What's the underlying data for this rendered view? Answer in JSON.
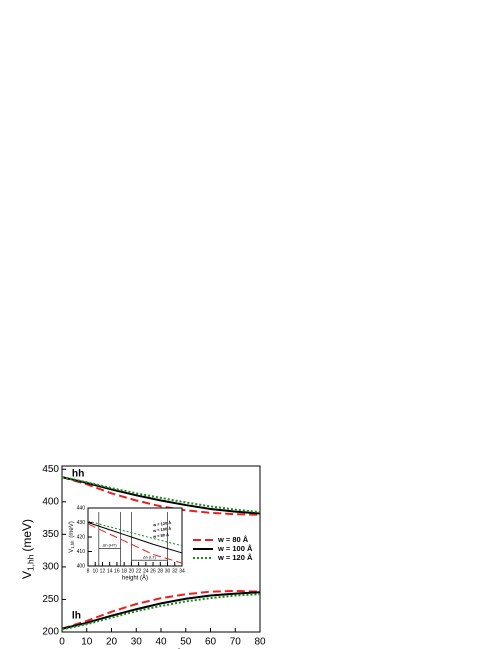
{
  "chart_data": [
    {
      "type": "line",
      "xlabel": "height (Å)",
      "ylabel": "V",
      "ylabel_sub": "1,hh",
      "ylabel_unit": "(meV)",
      "x": [
        0,
        10,
        20,
        30,
        40,
        50,
        60,
        70,
        80
      ],
      "xlim": [
        0,
        80
      ],
      "xticks": [
        0,
        10,
        20,
        30,
        40,
        50,
        60,
        70,
        80
      ],
      "ylim": [
        200,
        455
      ],
      "yticks": [
        200,
        250,
        300,
        350,
        400,
        450
      ],
      "legend": "right",
      "series": [
        {
          "name": "w = 80 Å",
          "color": "#e8211f",
          "dash": "dashed",
          "hh": [
            438,
            427,
            413,
            402,
            393,
            387,
            383,
            381,
            380
          ],
          "lh": [
            205,
            217,
            231,
            243,
            252,
            258,
            262,
            263,
            262
          ]
        },
        {
          "name": "w = 100 Å",
          "color": "#000000",
          "dash": "solid",
          "hh": [
            438,
            429,
            419,
            410,
            402,
            395,
            389,
            385,
            382
          ],
          "lh": [
            205,
            214,
            225,
            235,
            244,
            251,
            256,
            259,
            261
          ]
        },
        {
          "name": "w = 120 Å",
          "color": "#1a8a1a",
          "dash": "dotted",
          "hh": [
            438,
            430,
            421,
            413,
            406,
            399,
            393,
            388,
            384
          ],
          "lh": [
            204,
            212,
            222,
            232,
            240,
            247,
            252,
            256,
            258
          ]
        }
      ],
      "annotations": [
        {
          "text": "hh",
          "x": 4,
          "y": 443
        },
        {
          "text": "lh",
          "x": 4,
          "y": 225
        }
      ]
    },
    {
      "type": "line",
      "xlabel": "height (Å)",
      "ylabel": "V",
      "ylabel_sub": "1,hh",
      "ylabel_unit": "(meV)",
      "x": [
        8,
        14,
        20,
        26,
        34
      ],
      "xlim": [
        8,
        34
      ],
      "xticks": [
        8,
        10,
        12,
        14,
        16,
        18,
        20,
        22,
        24,
        26,
        28,
        30,
        32,
        34
      ],
      "ylim": [
        400,
        440
      ],
      "yticks": [
        400,
        410,
        420,
        430,
        440
      ],
      "series": [
        {
          "name": "w = 80 Å",
          "color": "#e8211f",
          "dash": "dashed",
          "values": [
            429,
            422,
            415,
            408,
            402
          ]
        },
        {
          "name": "w = 100 Å",
          "color": "#000000",
          "dash": "solid",
          "values": [
            430,
            425,
            420,
            415,
            409
          ]
        },
        {
          "name": "w = 120 Å",
          "color": "#1a8a1a",
          "dash": "dotted",
          "values": [
            431,
            427,
            423,
            419,
            414
          ]
        }
      ],
      "vlines": [
        11,
        17,
        20,
        30
      ],
      "spans": [
        {
          "label": "Δh (HT)",
          "from": 11,
          "to": 17,
          "y": 412
        },
        {
          "label": "Δh (LT)",
          "from": 20,
          "to": 30,
          "y": 404
        }
      ],
      "annotations": [
        {
          "text": "w = 120 Å",
          "x": 26,
          "y": 428
        },
        {
          "text": "w = 100 Å",
          "x": 26,
          "y": 424
        },
        {
          "text": "w = 80 Å",
          "x": 26,
          "y": 420
        }
      ]
    }
  ]
}
